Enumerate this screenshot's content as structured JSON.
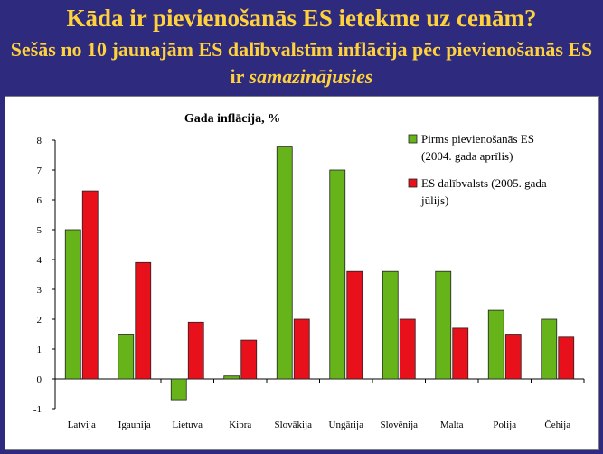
{
  "header": {
    "title": "Kāda ir pievienošanās ES ietekme uz cenām?",
    "subtitle_main": "Sešās no 10 jaunajām ES dalībvalstīm inflācija pēc pievienošanās ES ir",
    "subtitle_italic": "samazinājusies"
  },
  "colors": {
    "background": "#2e2a7e",
    "heading": "#ffd23c",
    "series_before": "#66b31a",
    "series_after": "#e8101a"
  },
  "chart_data": {
    "type": "bar",
    "title": "Gada inflācija, %",
    "categories": [
      "Latvija",
      "Igaunija",
      "Lietuva",
      "Kipra",
      "Slovākija",
      "Ungārija",
      "Slovēnija",
      "Malta",
      "Polija",
      "Čehija"
    ],
    "series": [
      {
        "name": "Pirms pievienošanās ES (2004. gada aprīlis)",
        "legend_lines": [
          "Pirms pievienošanās ES",
          "(2004. gada aprīlis)"
        ],
        "values": [
          5.0,
          1.5,
          -0.7,
          0.1,
          7.8,
          7.0,
          3.6,
          3.6,
          2.3,
          2.0
        ]
      },
      {
        "name": "ES dalībvalsts (2005. gada jūlijs)",
        "legend_lines": [
          "ES dalībvalsts (2005. gada",
          "jūlijs)"
        ],
        "values": [
          6.3,
          3.9,
          1.9,
          1.3,
          2.0,
          3.6,
          2.0,
          1.7,
          1.5,
          1.4
        ]
      }
    ],
    "ylim": [
      -1,
      8
    ],
    "yticks": [
      "-1",
      "0",
      "1",
      "2",
      "3",
      "4",
      "5",
      "6",
      "7",
      "8"
    ],
    "grid": false,
    "legend_position": "top-right"
  }
}
